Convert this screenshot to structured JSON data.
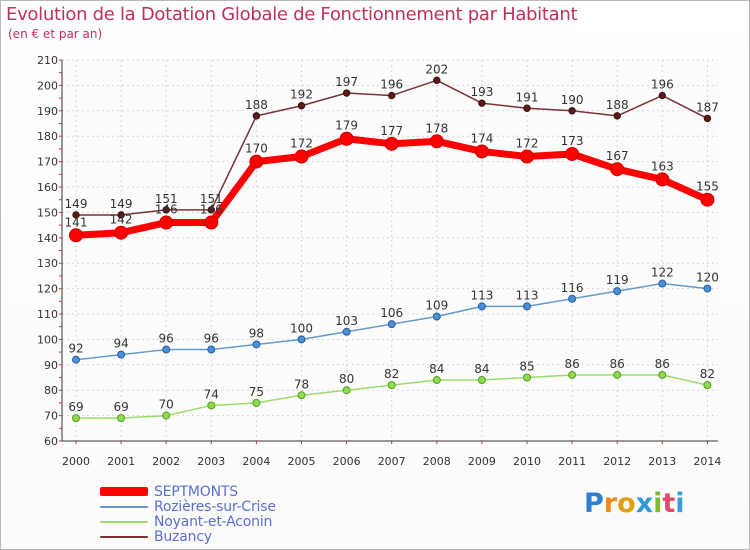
{
  "header": {
    "title": "Evolution de la Dotation Globale de Fonctionnement par Habitant",
    "subtitle": "(en € et par an)"
  },
  "logo": {
    "text": "Proxiti",
    "letters": [
      "P",
      "r",
      "o",
      "x",
      "i",
      "t",
      "i"
    ]
  },
  "chart_data": {
    "type": "line",
    "title": "Evolution de la Dotation Globale de Fonctionnement par Habitant",
    "subtitle": "(en € et par an)",
    "xlabel": "",
    "ylabel": "",
    "x": [
      "2000",
      "2001",
      "2002",
      "2003",
      "2004",
      "2005",
      "2006",
      "2007",
      "2008",
      "2009",
      "2010",
      "2011",
      "2012",
      "2013",
      "2014"
    ],
    "ylim": [
      60,
      210
    ],
    "yticks": [
      60,
      70,
      80,
      90,
      100,
      110,
      120,
      130,
      140,
      150,
      160,
      170,
      180,
      190,
      200,
      210
    ],
    "grid": true,
    "legend_position": "bottom-left",
    "series": [
      {
        "name": "SEPTMONTS",
        "color": "#ff0000",
        "values": [
          141,
          142,
          146,
          146,
          170,
          172,
          179,
          177,
          178,
          174,
          172,
          173,
          167,
          163,
          155
        ],
        "labels": [
          "141",
          "142",
          "146",
          "146",
          "170",
          "172",
          "179",
          "177",
          "178",
          "174",
          "172",
          "173",
          "167",
          "163",
          "155"
        ]
      },
      {
        "name": "Rozières-sur-Crise",
        "color": "#6699cc",
        "values": [
          92,
          94,
          96,
          96,
          98,
          100,
          103,
          106,
          109,
          113,
          113,
          116,
          119,
          122,
          120
        ],
        "labels": [
          "92",
          "94",
          "96",
          "96",
          "98",
          "100",
          "103",
          "106",
          "109",
          "113",
          "113",
          "116",
          "119",
          "122",
          "120"
        ]
      },
      {
        "name": "Noyant-et-Aconin",
        "color": "#99dd66",
        "values": [
          69,
          69,
          70,
          74,
          75,
          78,
          80,
          82,
          84,
          84,
          85,
          86,
          86,
          86,
          82
        ],
        "labels": [
          "69",
          "69",
          "70",
          "74",
          "75",
          "78",
          "80",
          "82",
          "84",
          "84",
          "85",
          "86",
          "86",
          "86",
          "82"
        ]
      },
      {
        "name": "Buzancy",
        "color": "#7a3333",
        "values": [
          149,
          149,
          151,
          151,
          188,
          192,
          197,
          196,
          202,
          193,
          191,
          190,
          188,
          196,
          187
        ],
        "labels": [
          "149",
          "149",
          "151",
          "151",
          "188",
          "192",
          "197",
          "196",
          "202",
          "193",
          "191",
          "190",
          "188",
          "196",
          "187"
        ]
      }
    ]
  }
}
